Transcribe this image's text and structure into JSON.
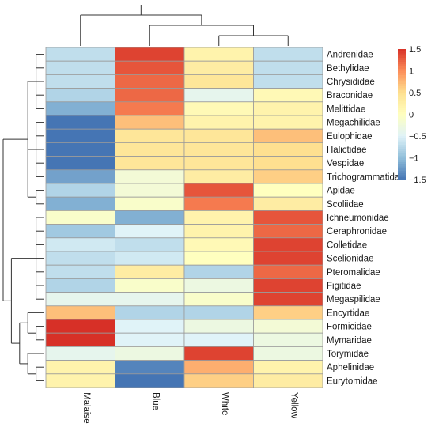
{
  "chart_data": {
    "type": "heatmap",
    "title": "",
    "xlabel": "",
    "ylabel": "",
    "columns": [
      "Malaise",
      "Blue",
      "White",
      "Yellow"
    ],
    "rows": [
      "Andrenidae",
      "Bethylidae",
      "Chrysididae",
      "Braconidae",
      "Melittidae",
      "Megachilidae",
      "Eulophidae",
      "Halictidae",
      "Vespidae",
      "Trichogrammatidae",
      "Apidae",
      "Scoliidae",
      "Ichneumonidae",
      "Ceraphronidae",
      "Colletidae",
      "Scelionidae",
      "Pteromalidae",
      "Figitidae",
      "Megaspilidae",
      "Encyrtidae",
      "Formicidae",
      "Mymaridae",
      "Torymidae",
      "Aphelinidae",
      "Eurytomidae"
    ],
    "values": [
      [
        -0.7,
        1.4,
        0.2,
        -0.7
      ],
      [
        -0.7,
        1.3,
        0.3,
        -0.7
      ],
      [
        -0.7,
        1.2,
        0.4,
        -0.7
      ],
      [
        -0.8,
        1.2,
        -0.4,
        0.1
      ],
      [
        -1.1,
        1.1,
        0.1,
        0.2
      ],
      [
        -1.5,
        0.7,
        0.2,
        0.2
      ],
      [
        -1.5,
        0.4,
        0.4,
        0.7
      ],
      [
        -1.5,
        0.4,
        0.4,
        0.5
      ],
      [
        -1.5,
        0.4,
        0.4,
        0.5
      ],
      [
        -1.2,
        -0.2,
        0.3,
        0.6
      ],
      [
        -0.8,
        -0.2,
        1.3,
        0.0
      ],
      [
        -1.1,
        -0.1,
        1.1,
        0.3
      ],
      [
        -0.1,
        -1.1,
        0.2,
        1.3
      ],
      [
        -0.9,
        -0.5,
        0.2,
        1.2
      ],
      [
        -0.6,
        -0.7,
        0.1,
        1.4
      ],
      [
        -0.7,
        -0.6,
        0.0,
        1.4
      ],
      [
        -0.7,
        0.3,
        -0.8,
        1.2
      ],
      [
        -0.8,
        -0.1,
        -0.3,
        1.4
      ],
      [
        -0.4,
        -0.4,
        -0.1,
        1.4
      ],
      [
        0.7,
        -0.8,
        -0.8,
        0.6
      ],
      [
        1.5,
        -0.5,
        -0.3,
        -0.2
      ],
      [
        1.5,
        -0.5,
        -0.5,
        -0.3
      ],
      [
        -0.4,
        -0.3,
        1.4,
        -0.3
      ],
      [
        0.2,
        -1.4,
        0.8,
        0.2
      ],
      [
        0.2,
        -1.5,
        0.6,
        0.3
      ]
    ],
    "color_scale": {
      "range": [
        -1.5,
        1.5
      ],
      "ticks": [
        {
          "value": 1.5,
          "label": "1.5"
        },
        {
          "value": 1,
          "label": "1"
        },
        {
          "value": 0.5,
          "label": "0.5"
        },
        {
          "value": 0,
          "label": "0"
        },
        {
          "value": -0.5,
          "label": "−0.5"
        },
        {
          "value": -1,
          "label": "−1"
        },
        {
          "value": -1.5,
          "label": "−1.5"
        }
      ],
      "colors": [
        "#4575b4",
        "#91bfdb",
        "#e0f3f8",
        "#ffffbf",
        "#fee090",
        "#fc8d59",
        "#d73027"
      ]
    },
    "column_dendrogram": "((Malaise,(Blue,(White,Yellow))))",
    "row_dendrogram": "(((Andrenidae,Bethylidae,Chrysididae,Braconidae,Melittidae),(Megachilidae,Eulophidae,Halictidae,Vespidae,Trichogrammatidae),(Apidae,Scoliidae)),((Ichneumonidae,Ceraphronidae,Colletidae,Scelionidae,Pteromalidae,Figitidae,Megaspilidae),((Encyrtidae,(Formicidae,Mymaridae)),(Torymidae,(Aphelinidae,Eurytomidae)))))",
    "grid": true,
    "legend": "top-right"
  }
}
